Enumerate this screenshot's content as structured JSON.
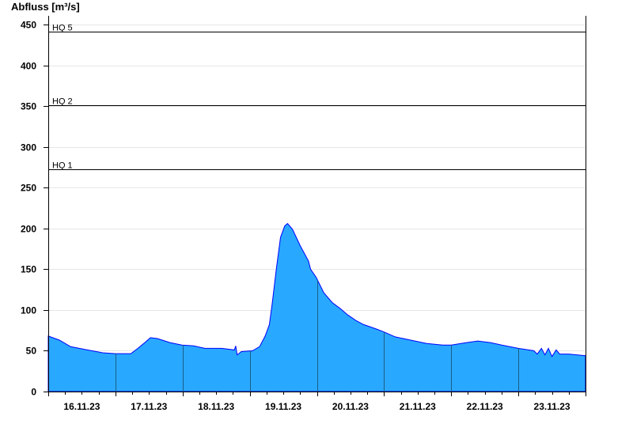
{
  "chart_data": {
    "type": "area",
    "title": "",
    "ylabel": "Abfluss [m³/s]",
    "xlabel": "",
    "ylim": [
      0,
      450
    ],
    "xlim": [
      "2023-11-16T00:00",
      "2023-11-24T00:00"
    ],
    "yticks": [
      0,
      50,
      100,
      150,
      200,
      250,
      300,
      350,
      400,
      450
    ],
    "xticks": [
      {
        "date": "2023-11-16T12:00",
        "label": "16.11.23"
      },
      {
        "date": "2023-11-17T12:00",
        "label": "17.11.23"
      },
      {
        "date": "2023-11-18T12:00",
        "label": "18.11.23"
      },
      {
        "date": "2023-11-19T12:00",
        "label": "19.11.23"
      },
      {
        "date": "2023-11-20T12:00",
        "label": "20.11.23"
      },
      {
        "date": "2023-11-21T12:00",
        "label": "21.11.23"
      },
      {
        "date": "2023-11-22T12:00",
        "label": "22.11.23"
      },
      {
        "date": "2023-11-23T12:00",
        "label": "23.11.23"
      }
    ],
    "grid": true,
    "thresholds": [
      {
        "label": "HQ 1",
        "value": 273
      },
      {
        "label": "HQ 2",
        "value": 351
      },
      {
        "label": "HQ 5",
        "value": 441
      }
    ],
    "colors": {
      "fill": "#29a8ff",
      "line": "#0000ff",
      "grid": "#e6e6e6",
      "day_lines": "#1b5e86"
    },
    "series": [
      {
        "x": [
          "2023-11-16T00:00",
          "2023-11-16T04:00",
          "2023-11-16T08:00",
          "2023-11-16T14:00",
          "2023-11-16T19:30",
          "2023-11-17T00:00",
          "2023-11-17T05:30",
          "2023-11-17T08:00",
          "2023-11-17T10:30",
          "2023-11-17T12:30",
          "2023-11-17T15:00",
          "2023-11-17T19:30",
          "2023-11-17T23:45",
          "2023-11-18T04:00",
          "2023-11-18T08:00",
          "2023-11-18T14:00",
          "2023-11-18T18:30",
          "2023-11-18T19:00",
          "2023-11-18T19:30",
          "2023-11-18T21:00",
          "2023-11-19T01:00",
          "2023-11-19T03:30",
          "2023-11-19T05:30",
          "2023-11-19T07:00",
          "2023-11-19T08:00",
          "2023-11-19T09:30",
          "2023-11-19T11:00",
          "2023-11-19T12:30",
          "2023-11-19T13:30",
          "2023-11-19T15:15",
          "2023-11-19T18:00",
          "2023-11-19T21:00",
          "2023-11-19T21:45",
          "2023-11-19T23:45",
          "2023-11-20T02:30",
          "2023-11-20T05:30",
          "2023-11-20T08:15",
          "2023-11-20T11:00",
          "2023-11-20T14:00",
          "2023-11-20T16:45",
          "2023-11-20T21:00",
          "2023-11-21T00:00",
          "2023-11-21T04:00",
          "2023-11-21T09:30",
          "2023-11-21T15:15",
          "2023-11-21T21:00",
          "2023-11-22T00:00",
          "2023-11-22T05:30",
          "2023-11-22T09:30",
          "2023-11-22T14:00",
          "2023-11-22T19:30",
          "2023-11-23T00:00",
          "2023-11-23T05:30",
          "2023-11-23T06:45",
          "2023-11-23T08:15",
          "2023-11-23T09:30",
          "2023-11-23T10:45",
          "2023-11-23T12:00",
          "2023-11-23T13:30",
          "2023-11-23T14:45",
          "2023-11-23T18:00",
          "2023-11-23T23:45"
        ],
        "y": [
          68,
          63,
          55,
          51,
          47.5,
          46.5,
          46.5,
          53,
          60,
          66,
          65,
          60,
          57,
          56,
          53,
          53,
          51,
          56,
          45,
          49,
          50,
          55,
          68,
          82,
          107,
          150,
          189,
          203,
          206,
          199,
          179,
          160,
          150,
          140,
          121,
          109,
          102,
          94,
          87,
          82,
          77,
          73,
          67,
          63,
          59,
          57,
          57,
          60,
          62,
          60,
          56,
          53,
          50,
          46,
          53,
          45,
          53,
          43,
          51,
          46,
          46,
          44
        ]
      }
    ]
  }
}
